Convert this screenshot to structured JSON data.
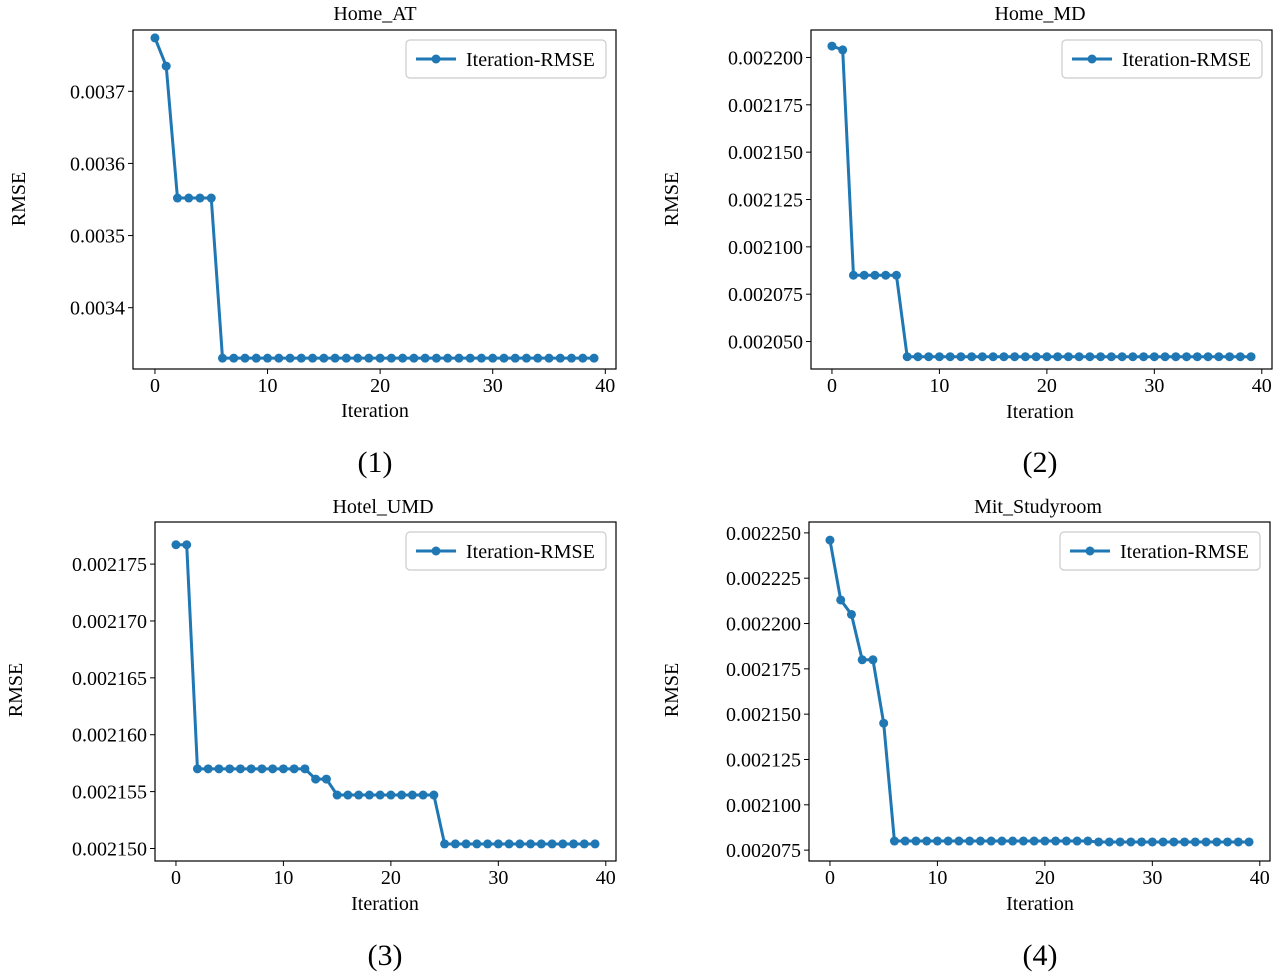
{
  "colors": {
    "line": "#1f77b4",
    "axis": "#000000",
    "legend_border": "#cccccc",
    "background": "#ffffff"
  },
  "chart_data": [
    {
      "type": "line",
      "title": "Home_AT",
      "caption": "(1)",
      "xlabel": "Iteration",
      "ylabel": "RMSE",
      "legend": "Iteration-RMSE",
      "legend_position": "top-right",
      "xlim": [
        -1.95,
        40.95
      ],
      "ylim": [
        0.003315,
        0.003785
      ],
      "xticks": [
        0,
        10,
        20,
        30,
        40
      ],
      "xtick_labels": [
        "0",
        "10",
        "20",
        "30",
        "40"
      ],
      "yticks": [
        0.0034,
        0.0035,
        0.0036,
        0.0037
      ],
      "ytick_labels": [
        "0.0034",
        "0.0035",
        "0.0036",
        "0.0037"
      ],
      "x": [
        0,
        1,
        2,
        3,
        4,
        5,
        6,
        7,
        8,
        9,
        10,
        11,
        12,
        13,
        14,
        15,
        16,
        17,
        18,
        19,
        20,
        21,
        22,
        23,
        24,
        25,
        26,
        27,
        28,
        29,
        30,
        31,
        32,
        33,
        34,
        35,
        36,
        37,
        38,
        39
      ],
      "values": [
        0.003774,
        0.003735,
        0.003552,
        0.003552,
        0.003552,
        0.003552,
        0.00333,
        0.00333,
        0.00333,
        0.00333,
        0.00333,
        0.00333,
        0.00333,
        0.00333,
        0.00333,
        0.00333,
        0.00333,
        0.00333,
        0.00333,
        0.00333,
        0.00333,
        0.00333,
        0.00333,
        0.00333,
        0.00333,
        0.00333,
        0.00333,
        0.00333,
        0.00333,
        0.00333,
        0.00333,
        0.00333,
        0.00333,
        0.00333,
        0.00333,
        0.00333,
        0.00333,
        0.00333,
        0.00333,
        0.00333
      ]
    },
    {
      "type": "line",
      "title": "Home_MD",
      "caption": "(2)",
      "xlabel": "Iteration",
      "ylabel": "RMSE",
      "legend": "Iteration-RMSE",
      "legend_position": "top-right",
      "xlim": [
        -1.95,
        40.95
      ],
      "ylim": [
        0.0020355,
        0.0022145
      ],
      "xticks": [
        0,
        10,
        20,
        30,
        40
      ],
      "xtick_labels": [
        "0",
        "10",
        "20",
        "30",
        "40"
      ],
      "yticks": [
        0.00205,
        0.002075,
        0.0021,
        0.002125,
        0.00215,
        0.002175,
        0.0022
      ],
      "ytick_labels": [
        "0.002050",
        "0.002075",
        "0.002100",
        "0.002125",
        "0.002150",
        "0.002175",
        "0.002200"
      ],
      "x": [
        0,
        1,
        2,
        3,
        4,
        5,
        6,
        7,
        8,
        9,
        10,
        11,
        12,
        13,
        14,
        15,
        16,
        17,
        18,
        19,
        20,
        21,
        22,
        23,
        24,
        25,
        26,
        27,
        28,
        29,
        30,
        31,
        32,
        33,
        34,
        35,
        36,
        37,
        38,
        39
      ],
      "values": [
        0.002206,
        0.002204,
        0.002085,
        0.002085,
        0.002085,
        0.002085,
        0.002085,
        0.002042,
        0.002042,
        0.002042,
        0.002042,
        0.002042,
        0.002042,
        0.002042,
        0.002042,
        0.002042,
        0.002042,
        0.002042,
        0.002042,
        0.002042,
        0.002042,
        0.002042,
        0.002042,
        0.002042,
        0.002042,
        0.002042,
        0.002042,
        0.002042,
        0.002042,
        0.002042,
        0.002042,
        0.002042,
        0.002042,
        0.002042,
        0.002042,
        0.002042,
        0.002042,
        0.002042,
        0.002042,
        0.002042
      ]
    },
    {
      "type": "line",
      "title": "Hotel_UMD",
      "caption": "(3)",
      "xlabel": "Iteration",
      "ylabel": "RMSE",
      "legend": "Iteration-RMSE",
      "legend_position": "top-right",
      "xlim": [
        -1.95,
        40.95
      ],
      "ylim": [
        0.0021489,
        0.0021787
      ],
      "xticks": [
        0,
        10,
        20,
        30,
        40
      ],
      "xtick_labels": [
        "0",
        "10",
        "20",
        "30",
        "40"
      ],
      "yticks": [
        0.00215,
        0.002155,
        0.00216,
        0.002165,
        0.00217,
        0.002175
      ],
      "ytick_labels": [
        "0.002150",
        "0.002155",
        "0.002160",
        "0.002165",
        "0.002170",
        "0.002175"
      ],
      "x": [
        0,
        1,
        2,
        3,
        4,
        5,
        6,
        7,
        8,
        9,
        10,
        11,
        12,
        13,
        14,
        15,
        16,
        17,
        18,
        19,
        20,
        21,
        22,
        23,
        24,
        25,
        26,
        27,
        28,
        29,
        30,
        31,
        32,
        33,
        34,
        35,
        36,
        37,
        38,
        39
      ],
      "values": [
        0.0021767,
        0.0021767,
        0.002157,
        0.002157,
        0.002157,
        0.002157,
        0.002157,
        0.002157,
        0.002157,
        0.002157,
        0.002157,
        0.002157,
        0.002157,
        0.0021561,
        0.0021561,
        0.0021547,
        0.0021547,
        0.0021547,
        0.0021547,
        0.0021547,
        0.0021547,
        0.0021547,
        0.0021547,
        0.0021547,
        0.0021547,
        0.0021504,
        0.0021504,
        0.0021504,
        0.0021504,
        0.0021504,
        0.0021504,
        0.0021504,
        0.0021504,
        0.0021504,
        0.0021504,
        0.0021504,
        0.0021504,
        0.0021504,
        0.0021504,
        0.0021504
      ]
    },
    {
      "type": "line",
      "title": "Mit_Studyroom",
      "caption": "(4)",
      "xlabel": "Iteration",
      "ylabel": "RMSE",
      "legend": "Iteration-RMSE",
      "legend_position": "top-right",
      "xlim": [
        -1.95,
        40.95
      ],
      "ylim": [
        0.002069,
        0.002256
      ],
      "xticks": [
        0,
        10,
        20,
        30,
        40
      ],
      "xtick_labels": [
        "0",
        "10",
        "20",
        "30",
        "40"
      ],
      "yticks": [
        0.002075,
        0.0021,
        0.002125,
        0.00215,
        0.002175,
        0.0022,
        0.002225,
        0.00225
      ],
      "ytick_labels": [
        "0.002075",
        "0.002100",
        "0.002125",
        "0.002150",
        "0.002175",
        "0.002200",
        "0.002225",
        "0.002250"
      ],
      "x": [
        0,
        1,
        2,
        3,
        4,
        5,
        6,
        7,
        8,
        9,
        10,
        11,
        12,
        13,
        14,
        15,
        16,
        17,
        18,
        19,
        20,
        21,
        22,
        23,
        24,
        25,
        26,
        27,
        28,
        29,
        30,
        31,
        32,
        33,
        34,
        35,
        36,
        37,
        38,
        39
      ],
      "values": [
        0.002246,
        0.002213,
        0.002205,
        0.00218,
        0.00218,
        0.002145,
        0.00208,
        0.00208,
        0.00208,
        0.00208,
        0.00208,
        0.00208,
        0.00208,
        0.00208,
        0.00208,
        0.00208,
        0.00208,
        0.00208,
        0.00208,
        0.00208,
        0.00208,
        0.00208,
        0.00208,
        0.00208,
        0.00208,
        0.0020795,
        0.0020795,
        0.0020795,
        0.0020795,
        0.0020795,
        0.0020795,
        0.0020795,
        0.0020795,
        0.0020795,
        0.0020795,
        0.0020795,
        0.0020795,
        0.0020795,
        0.0020795,
        0.0020795
      ]
    }
  ]
}
